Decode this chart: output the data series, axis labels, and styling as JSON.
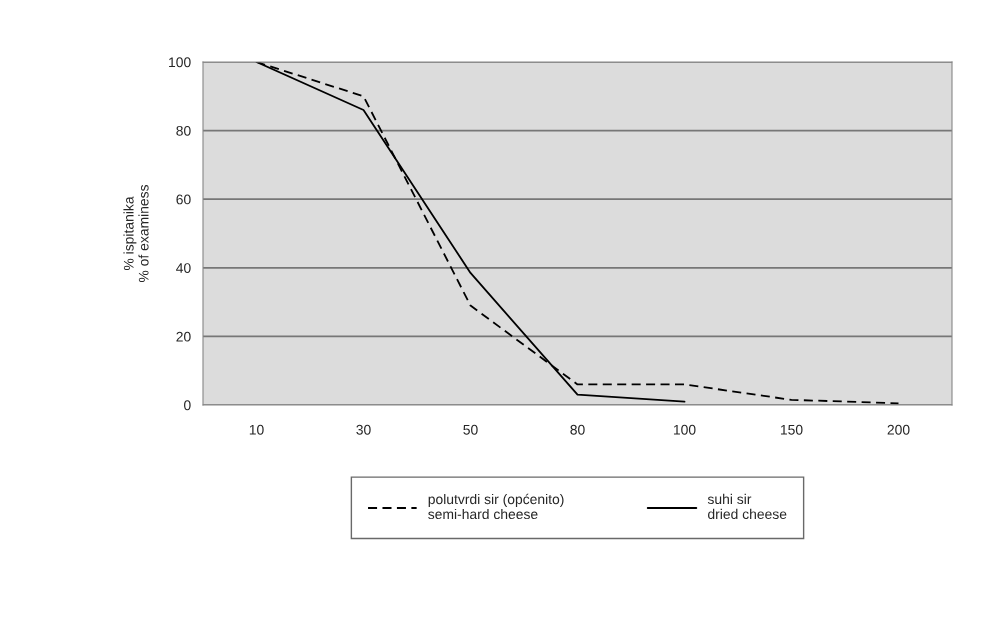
{
  "chart_data": {
    "type": "line",
    "ylabel": "% ispitanika\n% of examiness",
    "categories": [
      "10",
      "30",
      "50",
      "80",
      "100",
      "150",
      "200"
    ],
    "series": [
      {
        "name": "polutvrdi sir (općenito)\nsemi-hard cheese",
        "color": "#000000",
        "line_style": "dashed",
        "values": [
          100,
          90,
          29,
          6,
          6,
          1.5,
          0.5
        ]
      },
      {
        "name": "suhi sir\ndried cheese",
        "color": "#000000",
        "line_style": "solid",
        "values": [
          100,
          86,
          38.5,
          3,
          1,
          null,
          null
        ]
      }
    ],
    "ylim": [
      0,
      100
    ],
    "yticks": [
      0,
      20,
      40,
      60,
      80,
      100
    ],
    "grid": "y",
    "legend": "bottom",
    "marker": "none"
  }
}
